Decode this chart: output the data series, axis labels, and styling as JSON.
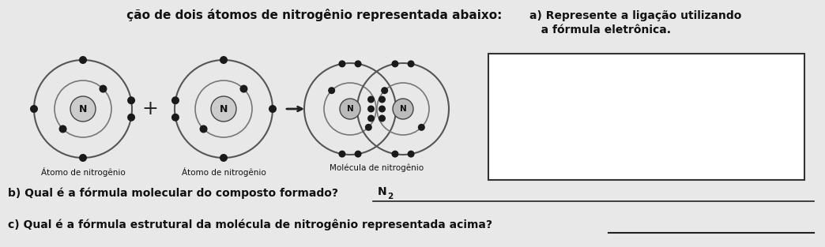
{
  "bg_color": "#e8e8e8",
  "title_text": " ção de dois átomos de nitrogênio representada abaixo:",
  "atom1_label": "Átomo de nitrogênio",
  "atom2_label": "Átomo de nitrogênio",
  "molecule_label": "Molécula de nitrogênio",
  "question_a_line1": "a) Represente a ligação utilizando",
  "question_a_line2": "   a fórmula eletrônica.",
  "question_b": "b) Qual é a fórmula molecular do composto formado?",
  "question_c": "c) Qual é a fórmula estrutural da molécula de nitrogênio representada acima?",
  "dot_color": "#1a1a1a",
  "ring_outer_color": "#555555",
  "ring_inner_color": "#777777",
  "nucleus_color": "#888888",
  "nucleus_edge": "#444444",
  "N_label_color": "#111111",
  "box_edge_color": "#333333",
  "line_color": "#222222",
  "arrow_color": "#222222",
  "plus_color": "#222222",
  "text_color": "#111111",
  "title_color": "#111111"
}
